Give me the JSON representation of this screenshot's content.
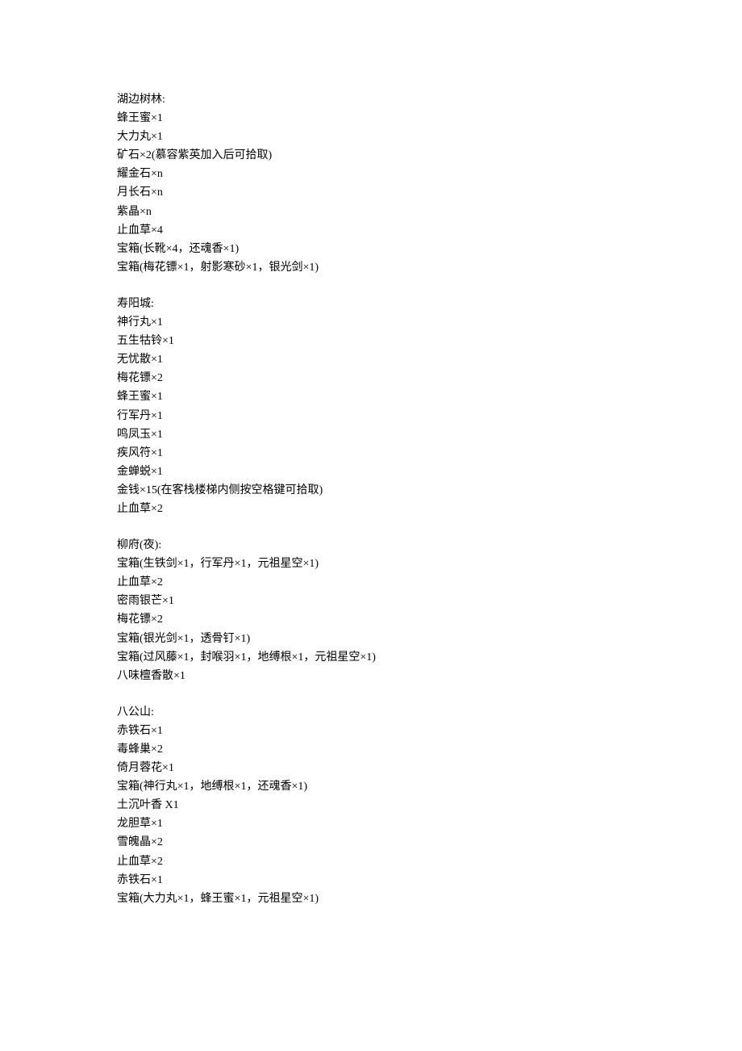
{
  "font_family": "SimSun",
  "font_size_pt": 10.5,
  "text_color": "#000000",
  "background_color": "#ffffff",
  "sections": [
    {
      "header": "湖边树林:",
      "lines": [
        "蜂王蜜×1",
        "大力丸×1",
        "矿石×2(慕容紫英加入后可拾取)",
        "耀金石×n",
        "月长石×n",
        "紫晶×n",
        "止血草×4",
        "宝箱(长靴×4，还魂香×1)",
        "宝箱(梅花镖×1，射影寒砂×1，银光剑×1)"
      ]
    },
    {
      "header": "寿阳城:",
      "lines": [
        "神行丸×1",
        "五生牯铃×1",
        "无忧散×1",
        "梅花镖×2",
        "蜂王蜜×1",
        "行军丹×1",
        "鸣凤玉×1",
        "疾风符×1",
        "金蝉蜕×1",
        "金钱×15(在客栈楼梯内侧按空格键可拾取)",
        "止血草×2"
      ]
    },
    {
      "header": "柳府(夜):",
      "lines": [
        "宝箱(生铁剑×1，行军丹×1，元祖星空×1)",
        "止血草×2",
        "密雨银芒×1",
        "梅花镖×2",
        "宝箱(银光剑×1，透骨钉×1)",
        "宝箱(过风藤×1，封喉羽×1，地缚根×1，元祖星空×1)",
        "八味檀香散×1"
      ]
    },
    {
      "header": "八公山:",
      "lines": [
        "赤铁石×1",
        "毒蜂巢×2",
        "倚月蓉花×1",
        "宝箱(神行丸×1，地缚根×1，还魂香×1)",
        "土沉叶香 X1",
        "龙胆草×1",
        "雪魄晶×2",
        "止血草×2",
        "赤铁石×1",
        "宝箱(大力丸×1，蜂王蜜×1，元祖星空×1)"
      ]
    }
  ]
}
